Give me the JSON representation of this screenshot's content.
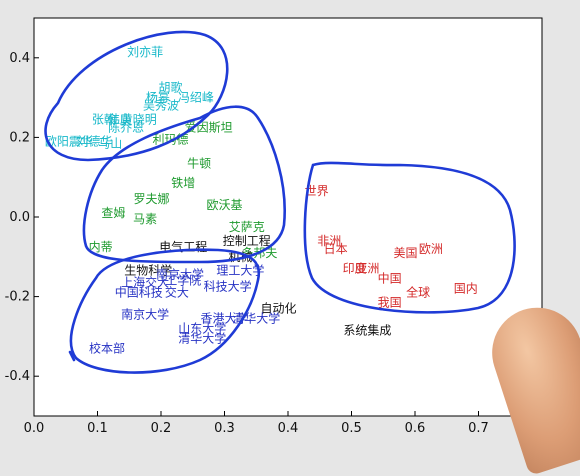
{
  "chart_data": {
    "type": "scatter",
    "title": "",
    "xlabel": "",
    "ylabel": "",
    "xlim": [
      0.0,
      0.8
    ],
    "ylim": [
      -0.5,
      0.5
    ],
    "xticks": [
      "0.0",
      "0.1",
      "0.2",
      "0.3",
      "0.4",
      "0.5",
      "0.6",
      "0.7",
      "0.8"
    ],
    "yticks": [
      "0.4",
      "0.2",
      "0.0",
      "-0.2",
      "-0.4"
    ],
    "xtick_values": [
      0.0,
      0.1,
      0.2,
      0.3,
      0.4,
      0.5,
      0.6,
      0.7,
      0.8
    ],
    "ytick_values": [
      0.4,
      0.2,
      0.0,
      -0.2,
      -0.4
    ],
    "grid": false,
    "legend": "none",
    "background": "#ffffff",
    "frame_color": "#000000",
    "annotation_color": "#1f3bd6",
    "series": [
      {
        "color": "#18b8c9",
        "points": [
          {
            "label": "刘亦菲",
            "x": 0.175,
            "y": 0.415
          },
          {
            "label": "胡歌",
            "x": 0.215,
            "y": 0.325
          },
          {
            "label": "杨幂",
            "x": 0.195,
            "y": 0.3
          },
          {
            "label": "冯绍峰",
            "x": 0.255,
            "y": 0.3
          },
          {
            "label": "吴秀波",
            "x": 0.2,
            "y": 0.28
          },
          {
            "label": "张翰",
            "x": 0.11,
            "y": 0.245
          },
          {
            "label": "韩庚",
            "x": 0.135,
            "y": 0.245
          },
          {
            "label": "黄晓明",
            "x": 0.165,
            "y": 0.245
          },
          {
            "label": "陈乔恩",
            "x": 0.145,
            "y": 0.225
          },
          {
            "label": "欧阳震华",
            "x": 0.055,
            "y": 0.19
          },
          {
            "label": "刘德华",
            "x": 0.095,
            "y": 0.19
          },
          {
            "label": "马山",
            "x": 0.12,
            "y": 0.185
          }
        ]
      },
      {
        "color": "#1e9a2e",
        "points": [
          {
            "label": "爱因斯坦",
            "x": 0.275,
            "y": 0.225
          },
          {
            "label": "利玛德",
            "x": 0.215,
            "y": 0.195
          },
          {
            "label": "牛顿",
            "x": 0.26,
            "y": 0.135
          },
          {
            "label": "铁增",
            "x": 0.235,
            "y": 0.085
          },
          {
            "label": "罗夫娜",
            "x": 0.185,
            "y": 0.045
          },
          {
            "label": "欧沃基",
            "x": 0.3,
            "y": 0.03
          },
          {
            "label": "查姆",
            "x": 0.125,
            "y": 0.01
          },
          {
            "label": "马素",
            "x": 0.175,
            "y": -0.005
          },
          {
            "label": "艾萨克",
            "x": 0.335,
            "y": -0.025
          },
          {
            "label": "内蒂",
            "x": 0.105,
            "y": -0.075
          },
          {
            "label": "多邦夫",
            "x": 0.355,
            "y": -0.09
          }
        ]
      },
      {
        "color": "#111111",
        "points": [
          {
            "label": "电气工程",
            "x": 0.235,
            "y": -0.075
          },
          {
            "label": "控制工程",
            "x": 0.335,
            "y": -0.06
          },
          {
            "label": "机械",
            "x": 0.325,
            "y": -0.1
          },
          {
            "label": "生物科学",
            "x": 0.18,
            "y": -0.135
          },
          {
            "label": "自动化",
            "x": 0.385,
            "y": -0.23
          },
          {
            "label": "系统集成",
            "x": 0.525,
            "y": -0.285
          }
        ]
      },
      {
        "color": "#2733c4",
        "points": [
          {
            "label": "上海交大",
            "x": 0.175,
            "y": -0.165
          },
          {
            "label": "南京大学",
            "x": 0.23,
            "y": -0.145
          },
          {
            "label": "理工大学",
            "x": 0.325,
            "y": -0.135
          },
          {
            "label": "工学院",
            "x": 0.235,
            "y": -0.16
          },
          {
            "label": "科技大学",
            "x": 0.305,
            "y": -0.175
          },
          {
            "label": "中国科技",
            "x": 0.165,
            "y": -0.19
          },
          {
            "label": "交大",
            "x": 0.225,
            "y": -0.19
          },
          {
            "label": "南京大学",
            "x": 0.175,
            "y": -0.245
          },
          {
            "label": "香港大学",
            "x": 0.3,
            "y": -0.255
          },
          {
            "label": "清华大学",
            "x": 0.35,
            "y": -0.255
          },
          {
            "label": "山东大学",
            "x": 0.265,
            "y": -0.28
          },
          {
            "label": "清华大学",
            "x": 0.265,
            "y": -0.305
          },
          {
            "label": "校本部",
            "x": 0.115,
            "y": -0.33
          }
        ]
      },
      {
        "color": "#d42a2a",
        "points": [
          {
            "label": "世界",
            "x": 0.445,
            "y": 0.065
          },
          {
            "label": "非洲",
            "x": 0.465,
            "y": -0.06
          },
          {
            "label": "日本",
            "x": 0.475,
            "y": -0.08
          },
          {
            "label": "美国",
            "x": 0.585,
            "y": -0.09
          },
          {
            "label": "欧洲",
            "x": 0.625,
            "y": -0.08
          },
          {
            "label": "印度",
            "x": 0.505,
            "y": -0.13
          },
          {
            "label": "亚洲",
            "x": 0.525,
            "y": -0.13
          },
          {
            "label": "中国",
            "x": 0.56,
            "y": -0.155
          },
          {
            "label": "全球",
            "x": 0.605,
            "y": -0.19
          },
          {
            "label": "国内",
            "x": 0.68,
            "y": -0.18
          },
          {
            "label": "我国",
            "x": 0.56,
            "y": -0.215
          }
        ]
      }
    ]
  }
}
